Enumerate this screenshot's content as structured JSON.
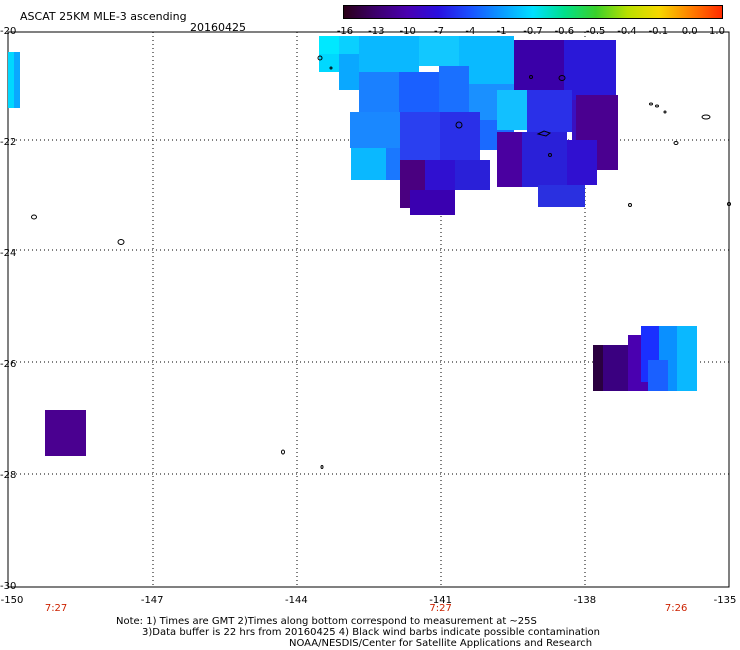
{
  "header": {
    "title": "ASCAT 25KM MLE-3 ascending",
    "date": "20160425"
  },
  "colorbar": {
    "labels": [
      "-16",
      "-13",
      "-10",
      "-7",
      "-4",
      "-1",
      "-0.7",
      "-0.6",
      "-0.5",
      "-0.4",
      "-0.1",
      "0.0",
      "1.0"
    ],
    "colors": [
      "#2a0018",
      "#3c006c",
      "#4a00b0",
      "#2a10e0",
      "#1a50ff",
      "#0a9aff",
      "#00e0ff",
      "#00e08a",
      "#3ad02a",
      "#b8e000",
      "#f6d800",
      "#ff8000",
      "#ff2a00"
    ]
  },
  "axes": {
    "x_labels": [
      "-150",
      "-147",
      "-144",
      "-141",
      "-138",
      "-135"
    ],
    "y_labels": [
      "-20",
      "-22",
      "-24",
      "-26",
      "-28",
      "-30"
    ],
    "x_range": [
      -150,
      -135
    ],
    "y_range": [
      -20,
      -30
    ]
  },
  "times": [
    {
      "label": "7:27",
      "x": -149.0
    },
    {
      "label": "7:27",
      "x": -141.0
    },
    {
      "label": "7:26",
      "x": -136.1
    }
  ],
  "notes": {
    "line1": "Note: 1) Times are GMT 2)Times along bottom correspond to measurement at ~25S",
    "line2": "3)Data buffer is 22 hrs from 20160425 4) Black wind barbs indicate possible contamination",
    "line3": "NOAA/NESDIS/Center for Satellite Applications and Research"
  }
}
